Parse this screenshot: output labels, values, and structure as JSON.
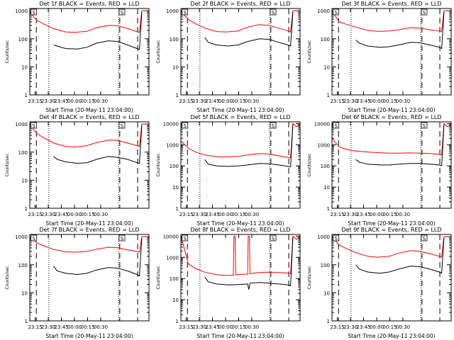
{
  "chart_data": [
    {
      "type": "line",
      "title": "Det 1f BLACK = Events, RED = LLD",
      "xlabel": "Start Time (20-May-11 23:04:00)",
      "ylabel": "Counts/sec",
      "ylog": true,
      "ylim": [
        1,
        1200
      ],
      "xticks": [
        "23:15",
        "23:30",
        "23:45",
        "00:00",
        "00:15",
        "00:30"
      ],
      "yticks": [
        "1",
        "10",
        "100",
        "1000"
      ],
      "markers": [
        "S",
        "S"
      ],
      "series": [
        {
          "color": "#ff0000",
          "x": [
            0,
            0.06,
            0.12,
            0.2,
            0.3,
            0.38,
            0.48,
            0.56,
            0.66,
            0.74,
            0.82,
            0.9,
            0.92,
            0.94,
            0.99
          ],
          "y": [
            900,
            450,
            330,
            230,
            175,
            170,
            185,
            250,
            300,
            290,
            230,
            180,
            170,
            1000,
            1000
          ]
        },
        {
          "color": "#000000",
          "x": [
            0.2,
            0.23,
            0.3,
            0.4,
            0.48,
            0.56,
            0.66,
            0.74,
            0.82,
            0.9,
            0.92,
            0.94
          ],
          "y": [
            60,
            55,
            45,
            43,
            50,
            70,
            85,
            80,
            60,
            45,
            42,
            900
          ]
        }
      ]
    },
    {
      "type": "line",
      "title": "Det 2f BLACK = Events, RED = LLD",
      "xlabel": "Start Time (20-May-11 23:04:00)",
      "ylabel": "Counts/sec",
      "ylog": true,
      "ylim": [
        1,
        1200
      ],
      "xticks": [
        "23:15",
        "23:30",
        "23:45",
        "00:00",
        "00:15",
        "00:30"
      ],
      "yticks": [
        "1",
        "10",
        "100",
        "1000"
      ],
      "markers": [
        "S",
        "S"
      ],
      "series": [
        {
          "color": "#ff0000",
          "x": [
            0,
            0.06,
            0.12,
            0.2,
            0.3,
            0.38,
            0.48,
            0.56,
            0.66,
            0.74,
            0.82,
            0.9,
            0.92,
            0.94,
            0.99
          ],
          "y": [
            950,
            500,
            350,
            240,
            180,
            175,
            190,
            260,
            320,
            300,
            240,
            190,
            175,
            1000,
            1000
          ]
        },
        {
          "color": "#000000",
          "x": [
            0.2,
            0.23,
            0.3,
            0.4,
            0.48,
            0.56,
            0.66,
            0.74,
            0.82,
            0.9,
            0.92,
            0.94
          ],
          "y": [
            110,
            75,
            60,
            55,
            60,
            80,
            100,
            95,
            75,
            60,
            55,
            900
          ]
        }
      ]
    },
    {
      "type": "line",
      "title": "Det 3f BLACK = Events, RED = LLD",
      "xlabel": "Start Time (20-May-11 23:04:00)",
      "ylabel": "Counts/sec",
      "ylog": true,
      "ylim": [
        1,
        1200
      ],
      "xticks": [
        "23:15",
        "23:30",
        "23:45",
        "00:00",
        "00:15",
        "00:30"
      ],
      "yticks": [
        "1",
        "10",
        "100",
        "1000"
      ],
      "markers": [
        "S",
        "S"
      ],
      "series": [
        {
          "color": "#ff0000",
          "x": [
            0,
            0.06,
            0.12,
            0.2,
            0.3,
            0.38,
            0.48,
            0.56,
            0.66,
            0.74,
            0.82,
            0.9,
            0.92,
            0.94,
            0.99
          ],
          "y": [
            1000,
            400,
            330,
            260,
            200,
            185,
            190,
            210,
            250,
            240,
            210,
            190,
            185,
            1000,
            1000
          ]
        },
        {
          "color": "#000000",
          "x": [
            0.2,
            0.23,
            0.3,
            0.4,
            0.48,
            0.56,
            0.66,
            0.74,
            0.82,
            0.9,
            0.92,
            0.94
          ],
          "y": [
            90,
            70,
            55,
            50,
            52,
            60,
            75,
            72,
            60,
            50,
            45,
            900
          ]
        }
      ]
    },
    {
      "type": "line",
      "title": "Det 4f BLACK = Events, RED = LLD",
      "xlabel": "Start Time (20-May-11 23:04:00)",
      "ylabel": "Counts/sec",
      "ylog": true,
      "ylim": [
        1,
        1200
      ],
      "xticks": [
        "23:15",
        "23:30",
        "23:45",
        "00:00",
        "00:15",
        "00:30"
      ],
      "yticks": [
        "1",
        "10",
        "100",
        "1000"
      ],
      "markers": [
        "S",
        "S"
      ],
      "series": [
        {
          "color": "#ff0000",
          "x": [
            0,
            0.06,
            0.12,
            0.2,
            0.3,
            0.38,
            0.48,
            0.56,
            0.66,
            0.74,
            0.82,
            0.9,
            0.92,
            0.94,
            0.99
          ],
          "y": [
            950,
            450,
            320,
            210,
            160,
            150,
            170,
            220,
            270,
            260,
            210,
            170,
            160,
            1000,
            1000
          ]
        },
        {
          "color": "#000000",
          "x": [
            0.2,
            0.23,
            0.3,
            0.4,
            0.48,
            0.56,
            0.66,
            0.74,
            0.82,
            0.9,
            0.92,
            0.94
          ],
          "y": [
            70,
            55,
            45,
            40,
            42,
            55,
            70,
            65,
            55,
            42,
            40,
            900
          ]
        }
      ]
    },
    {
      "type": "line",
      "title": "Det 5f BLACK = Events, RED = LLD",
      "xlabel": "Start Time (20-May-11 23:04:00)",
      "ylabel": "Counts/sec",
      "ylog": true,
      "ylim": [
        1,
        12000
      ],
      "xticks": [
        "23:15",
        "23:30",
        "23:45",
        "00:00",
        "00:15",
        "00:30"
      ],
      "yticks": [
        "1",
        "10",
        "100",
        "1000",
        "10000"
      ],
      "markers": [
        "S",
        "S"
      ],
      "series": [
        {
          "color": "#ff0000",
          "x": [
            0,
            0.06,
            0.12,
            0.2,
            0.3,
            0.38,
            0.48,
            0.56,
            0.66,
            0.74,
            0.82,
            0.9,
            0.92,
            0.94,
            0.97,
            1.0
          ],
          "y": [
            1500,
            700,
            450,
            330,
            270,
            260,
            280,
            330,
            380,
            360,
            300,
            250,
            240,
            10000,
            7000,
            10000
          ]
        },
        {
          "color": "#000000",
          "x": [
            0.2,
            0.23,
            0.3,
            0.4,
            0.48,
            0.56,
            0.66,
            0.74,
            0.82,
            0.9,
            0.92,
            0.94
          ],
          "y": [
            200,
            120,
            100,
            95,
            100,
            110,
            130,
            125,
            110,
            95,
            90,
            9000
          ]
        }
      ]
    },
    {
      "type": "line",
      "title": "Det 6f BLACK = Events, RED = LLD",
      "xlabel": "Start Time (20-May-11 23:04:00)",
      "ylabel": "Counts/sec",
      "ylog": true,
      "ylim": [
        1,
        12000
      ],
      "xticks": [
        "23:15",
        "23:30",
        "23:45",
        "00:00",
        "00:15",
        "00:30"
      ],
      "yticks": [
        "1",
        "10",
        "100",
        "1000",
        "10000"
      ],
      "markers": [
        "S",
        "S"
      ],
      "series": [
        {
          "color": "#ff0000",
          "x": [
            0,
            0.06,
            0.12,
            0.2,
            0.3,
            0.38,
            0.48,
            0.56,
            0.66,
            0.74,
            0.82,
            0.9,
            0.92,
            0.94,
            0.97,
            1.0
          ],
          "y": [
            2000,
            800,
            600,
            500,
            450,
            420,
            400,
            400,
            410,
            400,
            380,
            350,
            340,
            10000,
            7000,
            10000
          ]
        },
        {
          "color": "#000000",
          "x": [
            0.2,
            0.23,
            0.3,
            0.4,
            0.48,
            0.56,
            0.66,
            0.74,
            0.82,
            0.9,
            0.92,
            0.94
          ],
          "y": [
            200,
            150,
            120,
            110,
            110,
            120,
            130,
            130,
            120,
            110,
            100,
            9000
          ]
        }
      ]
    },
    {
      "type": "line",
      "title": "Det 7f BLACK = Events, RED = LLD",
      "xlabel": "Start Time (20-May-11 23:04:00)",
      "ylabel": "Counts/sec",
      "ylog": true,
      "ylim": [
        1,
        1200
      ],
      "xticks": [
        "23:15",
        "23:30",
        "23:45",
        "00:00",
        "00:15",
        "00:30"
      ],
      "yticks": [
        "1",
        "10",
        "100",
        "1000"
      ],
      "markers": [
        "S",
        "S"
      ],
      "series": [
        {
          "color": "#ff0000",
          "x": [
            0,
            0.06,
            0.12,
            0.2,
            0.3,
            0.38,
            0.48,
            0.56,
            0.66,
            0.74,
            0.82,
            0.9,
            0.92,
            0.94,
            0.99
          ],
          "y": [
            1000,
            600,
            470,
            350,
            290,
            280,
            300,
            360,
            420,
            400,
            340,
            300,
            280,
            1000,
            1000
          ]
        },
        {
          "color": "#000000",
          "x": [
            0.2,
            0.23,
            0.3,
            0.4,
            0.48,
            0.56,
            0.66,
            0.74,
            0.82,
            0.9,
            0.92,
            0.94
          ],
          "y": [
            90,
            60,
            50,
            45,
            50,
            65,
            80,
            75,
            60,
            45,
            40,
            900
          ]
        }
      ]
    },
    {
      "type": "line",
      "title": "Det 8f BLACK = Events, RED = LLD",
      "xlabel": "Start Time (20-May-11 23:04:00)",
      "ylabel": "Counts/sec",
      "ylog": true,
      "ylim": [
        1,
        12000
      ],
      "xticks": [
        "23:15",
        "23:30",
        "23:45",
        "00:00",
        "00:15",
        "00:30"
      ],
      "yticks": [
        "1",
        "10",
        "100",
        "1000",
        "10000"
      ],
      "markers": [
        "S",
        "S"
      ],
      "series": [
        {
          "color": "#ff0000",
          "x": [
            0,
            0.04,
            0.06,
            0.12,
            0.2,
            0.3,
            0.38,
            0.44,
            0.445,
            0.455,
            0.46,
            0.52,
            0.56,
            0.565,
            0.575,
            0.58,
            0.66,
            0.74,
            0.82,
            0.9,
            0.92,
            0.94,
            0.97,
            1.0
          ],
          "y": [
            10000,
            1500,
            500,
            300,
            200,
            150,
            140,
            140,
            10000,
            10000,
            150,
            160,
            160,
            10000,
            10000,
            170,
            190,
            200,
            190,
            180,
            170,
            10000,
            7000,
            10000
          ]
        },
        {
          "color": "#000000",
          "x": [
            0.2,
            0.23,
            0.3,
            0.4,
            0.48,
            0.56,
            0.57,
            0.58,
            0.66,
            0.74,
            0.82,
            0.9,
            0.92,
            0.94
          ],
          "y": [
            120,
            70,
            55,
            50,
            52,
            55,
            30,
            60,
            65,
            60,
            55,
            50,
            45,
            9000
          ]
        }
      ]
    },
    {
      "type": "line",
      "title": "Det 9f BLACK = Events, RED = LLD",
      "xlabel": "Start Time (20-May-11 23:04:00)",
      "ylabel": "Counts/sec",
      "ylog": true,
      "ylim": [
        1,
        1200
      ],
      "xticks": [
        "23:15",
        "23:30",
        "23:45",
        "00:00",
        "00:15",
        "00:30"
      ],
      "yticks": [
        "1",
        "10",
        "100",
        "1000"
      ],
      "markers": [
        "S",
        "S"
      ],
      "series": [
        {
          "color": "#ff0000",
          "x": [
            0,
            0.06,
            0.12,
            0.2,
            0.3,
            0.38,
            0.48,
            0.56,
            0.66,
            0.74,
            0.82,
            0.9,
            0.92,
            0.94,
            0.99
          ],
          "y": [
            1000,
            500,
            380,
            270,
            200,
            185,
            200,
            260,
            320,
            300,
            250,
            200,
            190,
            1000,
            1000
          ]
        },
        {
          "color": "#000000",
          "x": [
            0.2,
            0.23,
            0.3,
            0.4,
            0.48,
            0.56,
            0.66,
            0.74,
            0.82,
            0.9,
            0.92,
            0.94
          ],
          "y": [
            100,
            70,
            55,
            50,
            55,
            70,
            90,
            85,
            70,
            55,
            50,
            900
          ]
        }
      ]
    }
  ]
}
